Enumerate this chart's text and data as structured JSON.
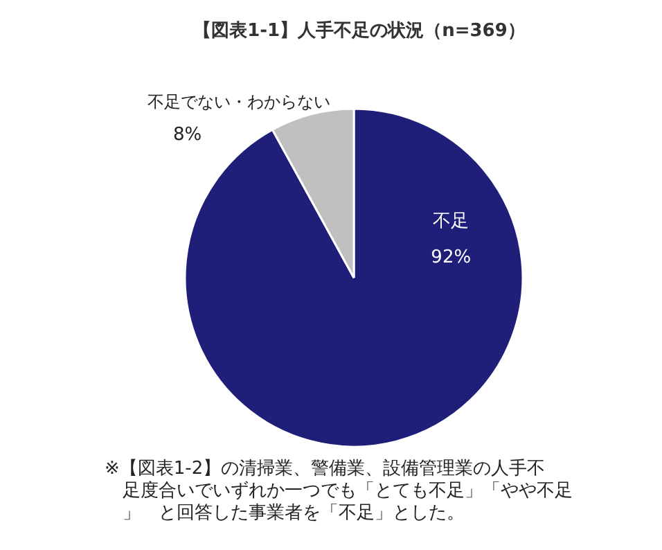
{
  "chart_data": {
    "type": "pie",
    "title": "【図表1-1】人手不足の状況（n=369）",
    "categories": [
      "不足",
      "不足でない・わからない"
    ],
    "values": [
      92,
      8
    ],
    "colors": [
      "#1f1f7a",
      "#c0c0c0"
    ],
    "value_labels": [
      "92%",
      "8%"
    ],
    "annotations": [
      "※【図表1-2】の清掃業、警備業、設備管理業の人手不足度合いでいずれか一つでも「とても不足」「やや不足」　と回答した事業者を「不足」とした。"
    ]
  }
}
